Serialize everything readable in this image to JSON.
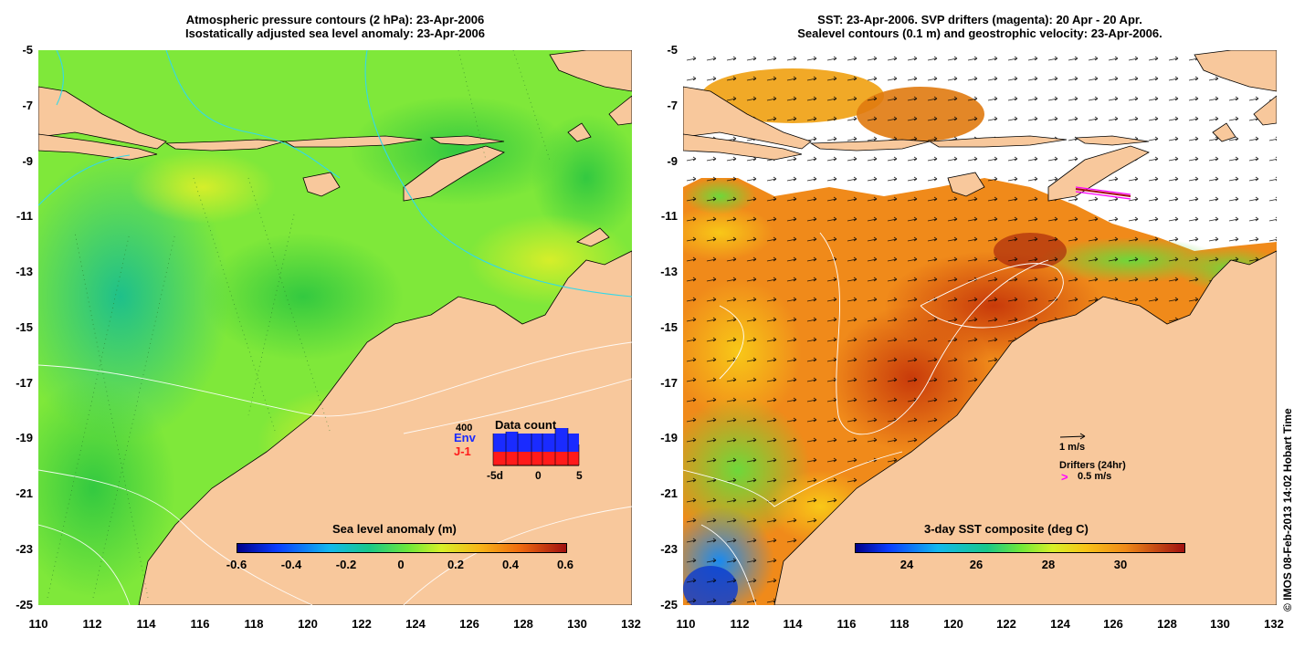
{
  "left_panel": {
    "title_line1": "Atmospheric pressure contours (2 hPa): 23-Apr-2006",
    "title_line2": "Isostatically adjusted sea level anomaly: 23-Apr-2006",
    "y_ticks": [
      "-5",
      "-7",
      "-9",
      "-11",
      "-13",
      "-15",
      "-17",
      "-19",
      "-21",
      "-23",
      "-25"
    ],
    "x_ticks": [
      "110",
      "112",
      "114",
      "116",
      "118",
      "120",
      "122",
      "124",
      "126",
      "128",
      "130",
      "132"
    ],
    "colorbar": {
      "title": "Sea level anomaly (m)",
      "labels": [
        "-0.6",
        "-0.4",
        "-0.2",
        "0",
        "0.2",
        "0.4",
        "0.6"
      ],
      "range": [
        -0.6,
        0.6
      ]
    },
    "data_count": {
      "title": "Data count",
      "max_label": "400",
      "env_label": "Env",
      "j1_label": "J-1",
      "x_labels": [
        "-5d",
        "0",
        "5"
      ],
      "env_color": "#1a2bff",
      "j1_color": "#ff1a1a"
    }
  },
  "right_panel": {
    "title_line1": "SST: 23-Apr-2006. SVP drifters (magenta): 20 Apr - 20 Apr.",
    "title_line2": "Sealevel contours (0.1 m) and geostrophic velocity: 23-Apr-2006.",
    "y_ticks": [
      "-5",
      "-7",
      "-9",
      "-11",
      "-13",
      "-15",
      "-17",
      "-19",
      "-21",
      "-23",
      "-25"
    ],
    "x_ticks": [
      "110",
      "112",
      "114",
      "116",
      "118",
      "120",
      "122",
      "124",
      "126",
      "128",
      "130",
      "132"
    ],
    "colorbar": {
      "title": "3-day SST composite (deg C)",
      "labels": [
        "24",
        "26",
        "28",
        "30"
      ],
      "range": [
        22.7,
        31.5
      ]
    },
    "velocity_key": "1 m/s",
    "drifters_label": "Drifters (24hr)",
    "drifter_key_symbol": ">",
    "drifter_key": "0.5 m/s",
    "drifter_color": "#ff00ff"
  },
  "credit": "© IMOS 08-Feb-2013 14:02 Hobart Time",
  "colors": {
    "land": "#f8c89c",
    "sla_green": "#7fe83a",
    "sst_orange": "#f08a1a",
    "cloud": "#ffffff"
  }
}
